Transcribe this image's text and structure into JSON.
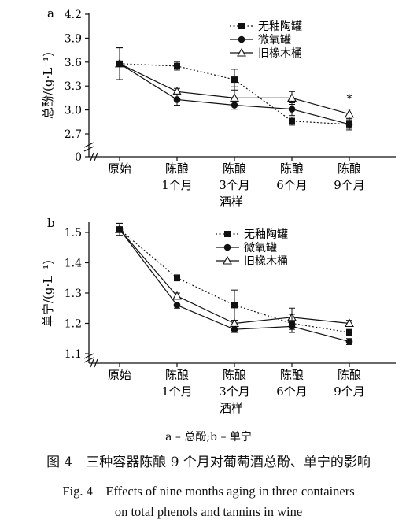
{
  "chart_data": [
    {
      "type": "line",
      "panel_label": "a",
      "categories": [
        "原始",
        "陈酿\n1个月",
        "陈酿\n3个月",
        "陈酿\n6个月",
        "陈酿\n9个月"
      ],
      "xlabel": "酒样",
      "ylabel": "总酚/(g·L⁻¹)",
      "ylim": [
        0,
        4.2
      ],
      "y_ticks": [
        "0",
        "2.7",
        "3.0",
        "3.3",
        "3.6",
        "3.9",
        "4.2"
      ],
      "axis_break": true,
      "legend_position": "top-right",
      "series": [
        {
          "name": "无釉陶罐",
          "marker": "square",
          "line": "dotted",
          "values": [
            3.58,
            3.55,
            3.38,
            2.86,
            2.82
          ],
          "errors": [
            0.2,
            0.05,
            0.13,
            0.05,
            0.05
          ]
        },
        {
          "name": "微氧罐",
          "marker": "circle",
          "line": "solid",
          "values": [
            3.58,
            3.13,
            3.06,
            3.01,
            2.82
          ],
          "errors": [
            0.2,
            0.07,
            0.05,
            0.08,
            0.07
          ]
        },
        {
          "name": "旧橡木桶",
          "marker": "triangle",
          "line": "solid",
          "values": [
            3.58,
            3.23,
            3.15,
            3.15,
            2.95
          ],
          "errors": [
            0.2,
            0.04,
            0.14,
            0.08,
            0.06
          ]
        }
      ],
      "annotations": [
        {
          "text": "*",
          "category_index": 4
        }
      ]
    },
    {
      "type": "line",
      "panel_label": "b",
      "categories": [
        "原始",
        "陈酿\n1个月",
        "陈酿\n3个月",
        "陈酿\n6个月",
        "陈酿\n9个月"
      ],
      "xlabel": "酒样",
      "ylabel": "单宁/(g·L⁻¹)",
      "ylim": [
        1.1,
        1.55
      ],
      "y_ticks": [
        "1.1",
        "1.2",
        "1.3",
        "1.4",
        "1.5"
      ],
      "axis_break": true,
      "legend_position": "top-right",
      "series": [
        {
          "name": "无釉陶罐",
          "marker": "square",
          "line": "dotted",
          "values": [
            1.51,
            1.35,
            1.26,
            1.2,
            1.17
          ],
          "errors": [
            0.02,
            0.01,
            0.05,
            0.03,
            0.01
          ]
        },
        {
          "name": "微氧罐",
          "marker": "circle",
          "line": "solid",
          "values": [
            1.51,
            1.26,
            1.18,
            1.19,
            1.14
          ],
          "errors": [
            0.02,
            0.01,
            0.01,
            0.01,
            0.01
          ]
        },
        {
          "name": "旧橡木桶",
          "marker": "triangle",
          "line": "solid",
          "values": [
            1.51,
            1.29,
            1.2,
            1.22,
            1.2
          ],
          "errors": [
            0.02,
            0.01,
            0.01,
            0.03,
            0.01
          ]
        }
      ]
    }
  ],
  "figure": {
    "subcaption": "a – 总酚;b – 单宁",
    "caption_zh": "图 4　三种容器陈酿 9 个月对葡萄酒总酚、单宁的影响",
    "caption_en_line1": "Fig. 4　Effects of nine months aging in three containers",
    "caption_en_line2": "on total phenols and tannins in wine"
  }
}
